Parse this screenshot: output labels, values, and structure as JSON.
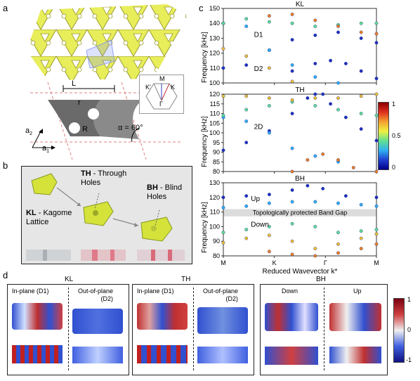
{
  "panels": {
    "a": "a",
    "b": "b",
    "c": "c",
    "d": "d"
  },
  "panel_a": {
    "L": "L",
    "r": "r",
    "R": "R",
    "alpha": "α = 60°",
    "a1": "a",
    "a1_sub": "1",
    "a2": "a",
    "a2_sub": "2",
    "bz": {
      "M": "M",
      "K": "K",
      "Kp": "K'",
      "G": "Γ"
    }
  },
  "panel_b": {
    "th_title": "TH",
    "th_rest": " - Through",
    "th_line2": "Holes",
    "bh_title": "BH",
    "bh_rest": " - Blind",
    "bh_line2": "Holes",
    "kl_title": "KL",
    "kl_rest": " - Kagome",
    "kl_line2": "Lattice"
  },
  "panel_c": {
    "ylabel": "Frequency [kHz]",
    "xlabel": "Reduced Wavevector k*",
    "xticks": [
      "M",
      "K",
      "Γ",
      "M"
    ],
    "colorbar": {
      "ticks": [
        "1",
        "0.5",
        "0"
      ]
    },
    "band_gap_label": "Topologically protected Band Gap"
  },
  "chart_data": [
    {
      "type": "scatter",
      "title": "KL",
      "ylabel": "Frequency [kHz]",
      "xlabel": "",
      "ylim": [
        100,
        150
      ],
      "yticks": [
        100,
        110,
        120,
        130,
        140,
        150
      ],
      "xticks": [
        "M",
        "K",
        "Γ",
        "M"
      ],
      "annotations": [
        "D1",
        "D2"
      ],
      "series": [
        {
          "points": [
            [
              0,
              110
            ],
            [
              0.15,
              112
            ],
            [
              0.3,
              122
            ],
            [
              0.45,
              129
            ],
            [
              0.6,
              132
            ],
            [
              0.75,
              134
            ],
            [
              0.9,
              130
            ],
            [
              1.0,
              127
            ]
          ]
        },
        {
          "points": [
            [
              0,
              140
            ],
            [
              0.15,
              138
            ],
            [
              0.3,
              122
            ],
            [
              0.45,
              112
            ],
            [
              0.6,
              104
            ],
            [
              0.75,
              100
            ]
          ]
        },
        {
          "points": [
            [
              0,
              140
            ],
            [
              0.15,
              143
            ],
            [
              0.3,
              141
            ],
            [
              0.45,
              140
            ],
            [
              0.6,
              138
            ],
            [
              0.75,
              139
            ],
            [
              0.9,
              140
            ],
            [
              1.0,
              140
            ]
          ]
        },
        {
          "points": [
            [
              0,
              123
            ],
            [
              0.15,
              118
            ],
            [
              0.3,
              110
            ],
            [
              0.45,
              101
            ]
          ]
        },
        {
          "points": [
            [
              0.3,
              145
            ],
            [
              0.45,
              146
            ],
            [
              0.6,
              142
            ],
            [
              0.75,
              138
            ],
            [
              0.9,
              134
            ],
            [
              1.0,
              133
            ]
          ]
        },
        {
          "points": [
            [
              0.45,
              108
            ],
            [
              0.6,
              113
            ],
            [
              0.7,
              115
            ],
            [
              0.8,
              113
            ],
            [
              0.9,
              108
            ],
            [
              1.0,
              103
            ]
          ]
        }
      ]
    },
    {
      "type": "scatter",
      "title": "TH",
      "ylabel": "Frequency [kHz]",
      "xlabel": "",
      "ylim": [
        80,
        120
      ],
      "yticks": [
        80,
        85,
        90,
        95,
        100,
        105,
        110,
        115,
        120
      ],
      "xticks": [
        "M",
        "K",
        "Γ",
        "M"
      ],
      "annotations": [
        "2D"
      ],
      "series": [
        {
          "points": [
            [
              0,
              91
            ],
            [
              0.15,
              95
            ],
            [
              0.3,
              101
            ],
            [
              0.45,
              110
            ],
            [
              0.55,
              118
            ],
            [
              0.65,
              120
            ]
          ]
        },
        {
          "points": [
            [
              0,
              108
            ],
            [
              0.15,
              106
            ],
            [
              0.3,
              100
            ],
            [
              0.45,
              92
            ],
            [
              0.6,
              88
            ],
            [
              0.75,
              85
            ]
          ]
        },
        {
          "points": [
            [
              0,
              109
            ],
            [
              0.15,
              112
            ],
            [
              0.3,
              114
            ],
            [
              0.45,
              116
            ],
            [
              0.6,
              114
            ],
            [
              0.75,
              112
            ],
            [
              0.9,
              110
            ],
            [
              1.0,
              109
            ]
          ]
        },
        {
          "points": [
            [
              0,
              119
            ],
            [
              0.15,
              119
            ],
            [
              0.3,
              118
            ],
            [
              0.45,
              117
            ],
            [
              0.6,
              118
            ],
            [
              0.75,
              118
            ],
            [
              0.9,
              119
            ],
            [
              1.0,
              120
            ]
          ]
        },
        {
          "points": [
            [
              0.45,
              80
            ],
            [
              0.55,
              86
            ],
            [
              0.65,
              89
            ],
            [
              0.75,
              86
            ],
            [
              0.85,
              82
            ],
            [
              1.0,
              80
            ]
          ]
        },
        {
          "points": [
            [
              0.6,
              120
            ],
            [
              0.7,
              115
            ],
            [
              0.8,
              108
            ],
            [
              0.9,
              102
            ],
            [
              1.0,
              96
            ]
          ]
        }
      ]
    },
    {
      "type": "scatter",
      "title": "BH",
      "ylabel": "Frequency [kHz]",
      "xlabel": "Reduced Wavevector k*",
      "ylim": [
        80,
        130
      ],
      "yticks": [
        80,
        90,
        100,
        110,
        120,
        130
      ],
      "xticks": [
        "M",
        "K",
        "Γ",
        "M"
      ],
      "annotations": [
        "Up",
        "Down",
        "Topologically protected Band Gap"
      ],
      "band_gap": [
        107,
        112
      ],
      "series": [
        {
          "points": [
            [
              0,
              120
            ],
            [
              0.15,
              121
            ],
            [
              0.3,
              122
            ],
            [
              0.45,
              125
            ],
            [
              0.55,
              128
            ],
            [
              0.65,
              126
            ],
            [
              0.8,
              121
            ],
            [
              1.0,
              120
            ]
          ]
        },
        {
          "points": [
            [
              0,
              113
            ],
            [
              0.15,
              114
            ],
            [
              0.3,
              116
            ],
            [
              0.45,
              117
            ],
            [
              0.6,
              117
            ],
            [
              0.75,
              116
            ],
            [
              0.9,
              115
            ],
            [
              1.0,
              114
            ]
          ]
        },
        {
          "points": [
            [
              0,
              96
            ],
            [
              0.15,
              98
            ],
            [
              0.3,
              100
            ],
            [
              0.45,
              102
            ],
            [
              0.6,
              100
            ],
            [
              0.75,
              96
            ],
            [
              0.9,
              97
            ],
            [
              1.0,
              98
            ]
          ]
        },
        {
          "points": [
            [
              0,
              89
            ],
            [
              0.15,
              92
            ],
            [
              0.3,
              94
            ],
            [
              0.45,
              90
            ],
            [
              0.6,
              85
            ],
            [
              0.75,
              88
            ],
            [
              0.9,
              92
            ],
            [
              1.0,
              95
            ]
          ]
        },
        {
          "points": [
            [
              0.3,
              83
            ],
            [
              0.45,
              81
            ],
            [
              0.6,
              80
            ],
            [
              0.75,
              82
            ],
            [
              0.9,
              85
            ],
            [
              1.0,
              88
            ]
          ]
        }
      ]
    }
  ],
  "panel_d": {
    "colorbar": {
      "ticks": [
        "1",
        "0",
        "-1"
      ]
    },
    "groups": [
      {
        "title": "KL",
        "left": "In-plane (D1)",
        "right_line1": "Out-of-plane",
        "right_line2": "(D2)"
      },
      {
        "title": "TH",
        "left": "In-plane (D1)",
        "right_line1": "Out-of-plane",
        "right_line2": "(D2)"
      },
      {
        "title": "BH",
        "left": "Down",
        "right_line1": "Up",
        "right_line2": ""
      }
    ]
  },
  "colors": {
    "lattice": "#e8ee5a",
    "lattice_edge": "#9a9a2a",
    "band_gap": "#dcdcdc",
    "accent_red": "#c0392b"
  }
}
